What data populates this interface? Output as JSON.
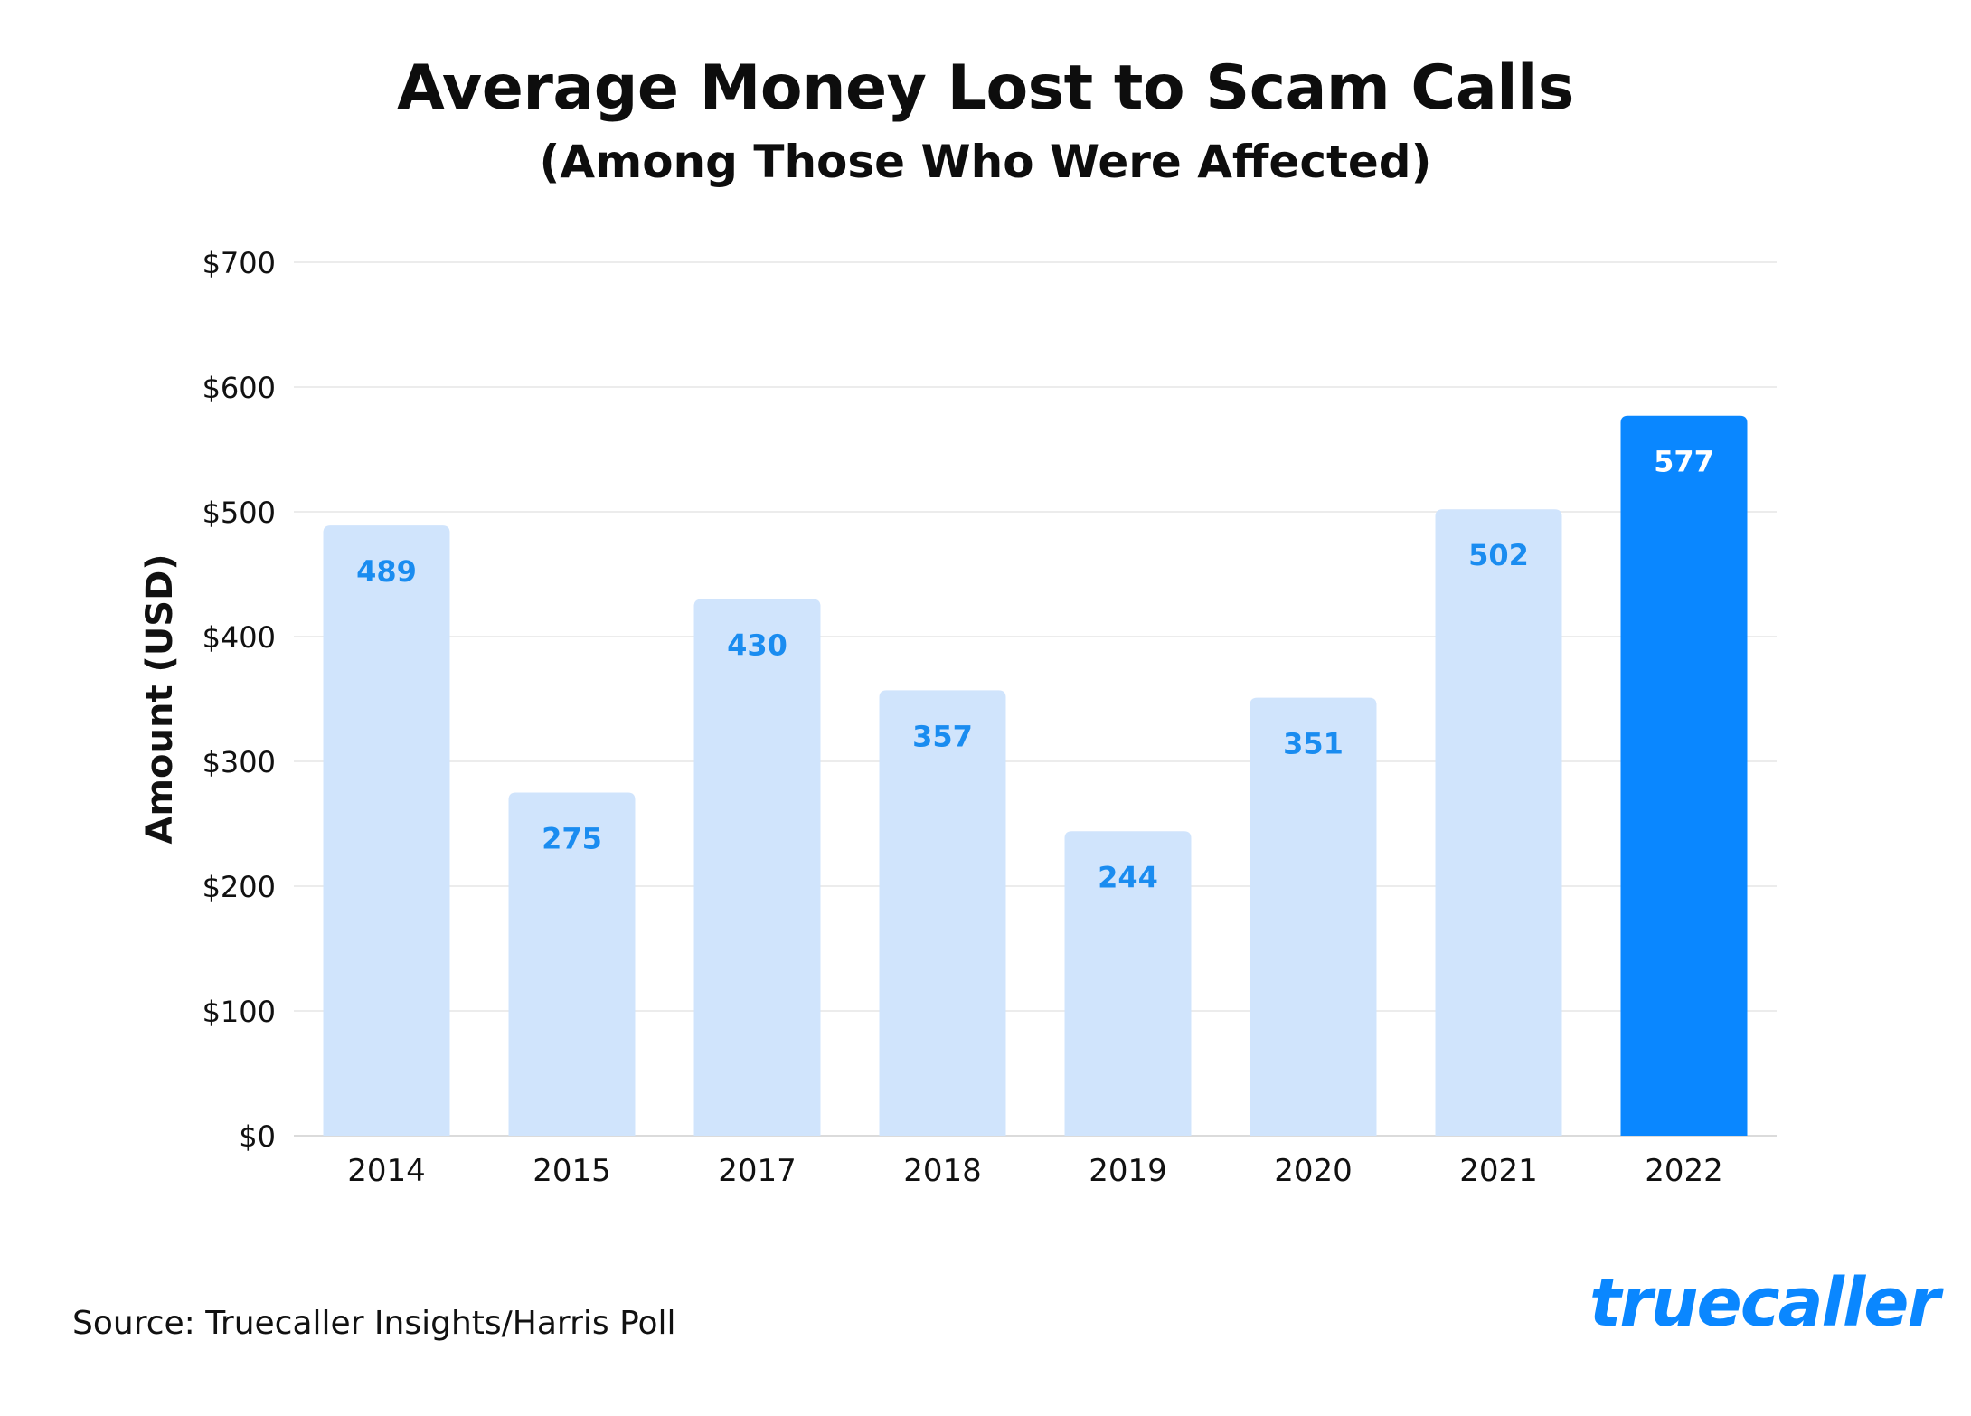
{
  "header": {
    "title": "Average Money Lost to Scam Calls",
    "subtitle": "(Among Those Who Were Affected)"
  },
  "footer": {
    "source": "Source: Truecaller Insights/Harris Poll",
    "logo_text": "truecaller"
  },
  "colors": {
    "bar_default": "#d0e4fc",
    "bar_highlight": "#0a87ff",
    "label_default": "#1a8cf0",
    "label_highlight": "#ffffff",
    "grid": "#e6e6e6"
  },
  "chart_data": {
    "type": "bar",
    "title": "Average Money Lost to Scam Calls",
    "subtitle": "(Among Those Who Were Affected)",
    "xlabel": "",
    "ylabel": "Amount (USD)",
    "categories": [
      "2014",
      "2015",
      "2017",
      "2018",
      "2019",
      "2020",
      "2021",
      "2022"
    ],
    "values": [
      489,
      275,
      430,
      357,
      244,
      351,
      502,
      577
    ],
    "data_labels": [
      "489",
      "275",
      "430",
      "357",
      "244",
      "351",
      "502",
      "577"
    ],
    "highlight_index": 7,
    "ylim": [
      0,
      700
    ],
    "yticks": [
      0,
      100,
      200,
      300,
      400,
      500,
      600,
      700
    ],
    "ytick_labels": [
      "$0",
      "$100",
      "$200",
      "$300",
      "$400",
      "$500",
      "$600",
      "$700"
    ],
    "grid": true,
    "legend": "none"
  }
}
